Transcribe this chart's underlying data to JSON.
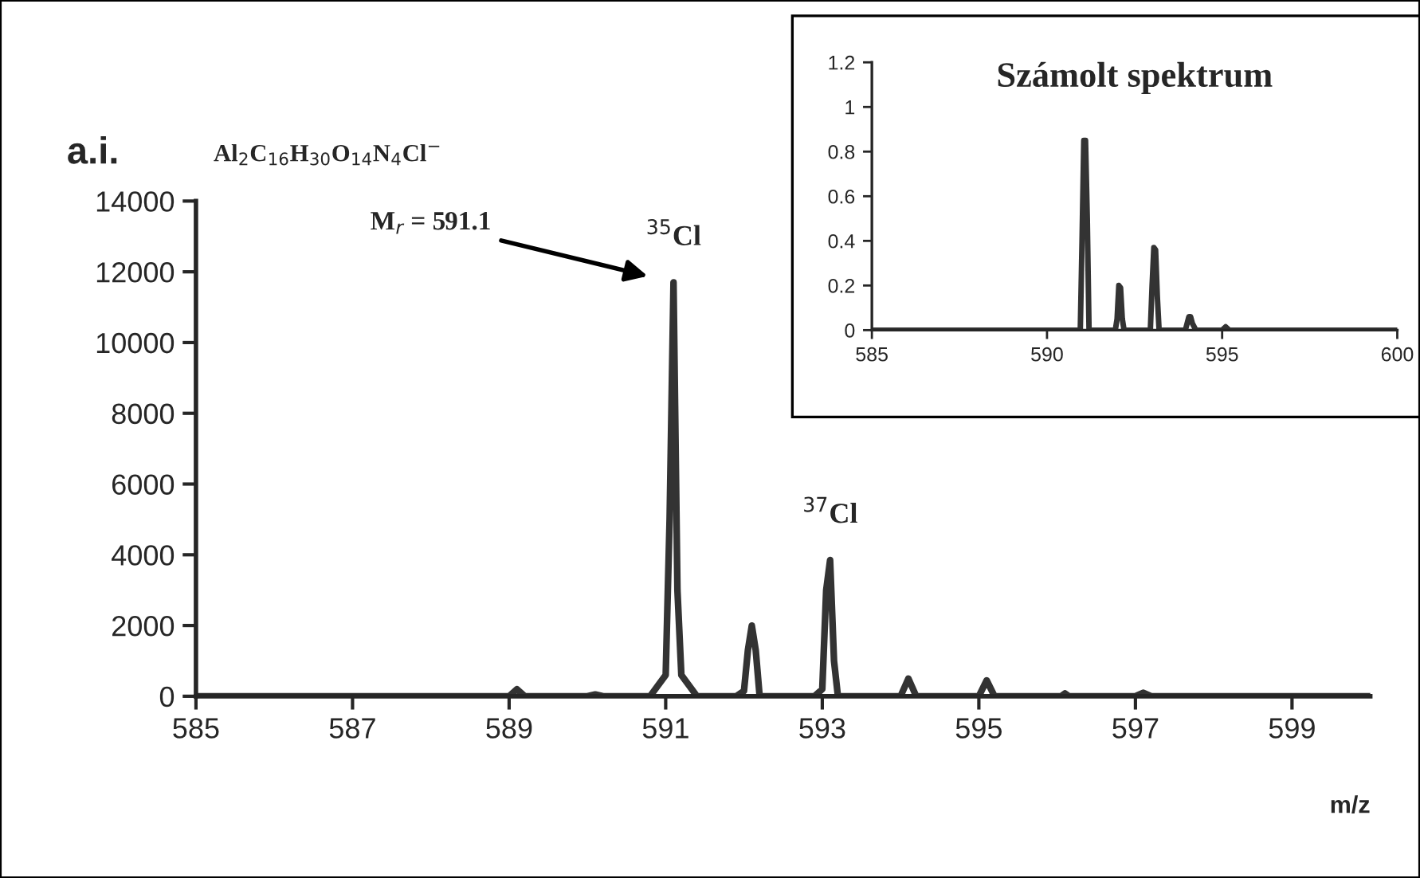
{
  "chart_data": [
    {
      "type": "line",
      "ylabel": "a.i.",
      "xlabel": "m/z",
      "xlim": [
        585,
        600
      ],
      "xticks": [
        585,
        587,
        589,
        591,
        593,
        595,
        597,
        599
      ],
      "ylim": [
        0,
        14000
      ],
      "yticks": [
        0,
        2000,
        4000,
        6000,
        8000,
        10000,
        12000,
        14000
      ],
      "grid": false,
      "legend": false,
      "marker": "none",
      "line_style": "solid",
      "annotations": [
        "Al$_{2}$C$_{16}$H$_{30}$O$_{14}$N$_{4}$Cl$^{−}$",
        "M$_{r}$ = 591.1",
        {
          "text": "$^{35}$Cl",
          "x": 591.1,
          "y": 11700
        },
        {
          "text": "$^{37}$Cl",
          "x": 593.1,
          "y": 3850
        }
      ],
      "series": [
        {
          "color": "#333333",
          "x": [
            585,
            589.0,
            589.1,
            589.2,
            590.0,
            590.1,
            590.2,
            590.8,
            591.0,
            591.05,
            591.1,
            591.15,
            591.2,
            591.4,
            591.9,
            592.0,
            592.05,
            592.1,
            592.15,
            592.2,
            592.9,
            593.0,
            593.05,
            593.1,
            593.15,
            593.2,
            594.0,
            594.1,
            594.2,
            595.0,
            595.1,
            595.2,
            596.05,
            596.1,
            596.15,
            597.0,
            597.1,
            597.2,
            600
          ],
          "values": [
            0,
            0,
            200,
            0,
            0,
            50,
            0,
            0,
            600,
            5000,
            11700,
            3000,
            600,
            0,
            0,
            150,
            1300,
            2000,
            1300,
            0,
            0,
            200,
            3000,
            3850,
            1000,
            0,
            0,
            500,
            0,
            0,
            450,
            0,
            0,
            80,
            0,
            0,
            100,
            0,
            0
          ]
        }
      ]
    },
    {
      "type": "line",
      "title": "Számolt spektrum",
      "xlim": [
        585,
        600
      ],
      "xticks": [
        585,
        590,
        595,
        600
      ],
      "ylim": [
        0,
        1.2
      ],
      "yticks": [
        0,
        0.2,
        0.4,
        0.6,
        0.8,
        1,
        1.2
      ],
      "grid": false,
      "legend": false,
      "marker": "none",
      "line_style": "solid",
      "series": [
        {
          "color": "#333333",
          "x": [
            585,
            590.95,
            591.0,
            591.05,
            591.1,
            591.15,
            591.2,
            591.95,
            592.0,
            592.05,
            592.1,
            592.15,
            592.2,
            592.95,
            593.0,
            593.05,
            593.1,
            593.15,
            593.2,
            593.95,
            594.05,
            594.1,
            594.15,
            594.25,
            595.0,
            595.1,
            595.2,
            600
          ],
          "values": [
            0,
            0,
            0.4,
            0.85,
            0.85,
            0.5,
            0,
            0,
            0.05,
            0.2,
            0.19,
            0.05,
            0,
            0,
            0.2,
            0.37,
            0.36,
            0.15,
            0,
            0,
            0.06,
            0.06,
            0.03,
            0,
            0,
            0.015,
            0,
            0
          ]
        }
      ]
    }
  ]
}
